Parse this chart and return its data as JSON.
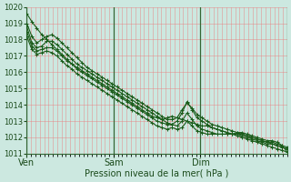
{
  "xlabel": "Pression niveau de la mer( hPa )",
  "ylim": [
    1011,
    1020
  ],
  "yticks": [
    1011,
    1012,
    1013,
    1014,
    1015,
    1016,
    1017,
    1018,
    1019,
    1020
  ],
  "day_labels": [
    "Ven",
    "Sam",
    "Dim"
  ],
  "day_positions": [
    0,
    0.333,
    0.667
  ],
  "background_color": "#cce8e0",
  "grid_minor_color": "#e88080",
  "grid_major_color": "#336633",
  "line_color": "#1a5c1a",
  "series": [
    [
      1019.6,
      1019.1,
      1018.7,
      1018.3,
      1018.0,
      1017.7,
      1017.4,
      1017.1,
      1016.8,
      1016.5,
      1016.3,
      1016.1,
      1015.9,
      1015.7,
      1015.5,
      1015.3,
      1015.1,
      1014.9,
      1014.7,
      1014.5,
      1014.3,
      1014.1,
      1013.9,
      1013.7,
      1013.5,
      1013.3,
      1013.2,
      1013.1,
      1013.2,
      1013.3,
      1013.2,
      1013.1,
      1013.0,
      1012.9,
      1012.8,
      1012.7,
      1012.7,
      1012.6,
      1012.5,
      1012.4,
      1012.3,
      1012.2,
      1012.1,
      1012.0,
      1011.9,
      1011.8,
      1011.7,
      1011.6,
      1011.5,
      1011.4,
      1011.3,
      1011.2,
      1011.1
    ],
    [
      1019.0,
      1018.2,
      1017.8,
      1018.0,
      1018.2,
      1018.3,
      1018.1,
      1017.8,
      1017.5,
      1017.2,
      1016.9,
      1016.6,
      1016.3,
      1016.1,
      1015.9,
      1015.7,
      1015.5,
      1015.3,
      1015.1,
      1014.9,
      1014.7,
      1014.5,
      1014.3,
      1014.1,
      1013.9,
      1013.7,
      1013.5,
      1013.3,
      1013.1,
      1013.1,
      1013.2,
      1013.7,
      1014.1,
      1013.8,
      1013.4,
      1013.2,
      1013.0,
      1012.8,
      1012.7,
      1012.6,
      1012.5,
      1012.4,
      1012.3,
      1012.2,
      1012.1,
      1012.0,
      1011.9,
      1011.8,
      1011.7,
      1011.6,
      1011.5,
      1011.4,
      1011.3
    ],
    [
      1018.8,
      1017.8,
      1017.5,
      1017.6,
      1017.9,
      1017.9,
      1017.7,
      1017.4,
      1017.1,
      1016.8,
      1016.5,
      1016.3,
      1016.1,
      1015.9,
      1015.7,
      1015.5,
      1015.3,
      1015.1,
      1014.9,
      1014.7,
      1014.5,
      1014.3,
      1014.1,
      1013.9,
      1013.7,
      1013.5,
      1013.3,
      1013.1,
      1012.9,
      1012.8,
      1013.0,
      1013.5,
      1014.2,
      1013.7,
      1013.2,
      1013.0,
      1012.8,
      1012.6,
      1012.5,
      1012.4,
      1012.3,
      1012.2,
      1012.2,
      1012.1,
      1012.0,
      1011.9,
      1011.8,
      1011.7,
      1011.6,
      1011.6,
      1011.5,
      1011.4,
      1011.3
    ],
    [
      1018.5,
      1017.6,
      1017.3,
      1017.4,
      1017.5,
      1017.5,
      1017.3,
      1017.0,
      1016.7,
      1016.5,
      1016.2,
      1016.0,
      1015.8,
      1015.6,
      1015.4,
      1015.2,
      1015.0,
      1014.8,
      1014.6,
      1014.4,
      1014.2,
      1014.0,
      1013.8,
      1013.6,
      1013.4,
      1013.2,
      1013.0,
      1012.9,
      1012.8,
      1012.8,
      1012.7,
      1013.0,
      1013.5,
      1013.1,
      1012.7,
      1012.5,
      1012.4,
      1012.3,
      1012.2,
      1012.2,
      1012.2,
      1012.2,
      1012.2,
      1012.2,
      1012.1,
      1012.0,
      1011.9,
      1011.8,
      1011.7,
      1011.7,
      1011.6,
      1011.5,
      1011.4
    ],
    [
      1018.2,
      1017.4,
      1017.1,
      1017.2,
      1017.3,
      1017.2,
      1017.0,
      1016.7,
      1016.4,
      1016.2,
      1015.9,
      1015.7,
      1015.5,
      1015.3,
      1015.1,
      1014.9,
      1014.7,
      1014.5,
      1014.3,
      1014.1,
      1013.9,
      1013.7,
      1013.5,
      1013.3,
      1013.1,
      1012.9,
      1012.7,
      1012.6,
      1012.5,
      1012.6,
      1012.5,
      1012.6,
      1013.0,
      1012.7,
      1012.4,
      1012.3,
      1012.2,
      1012.2,
      1012.2,
      1012.2,
      1012.2,
      1012.2,
      1012.3,
      1012.3,
      1012.2,
      1012.1,
      1012.0,
      1011.9,
      1011.8,
      1011.8,
      1011.7,
      1011.5,
      1011.1
    ]
  ]
}
